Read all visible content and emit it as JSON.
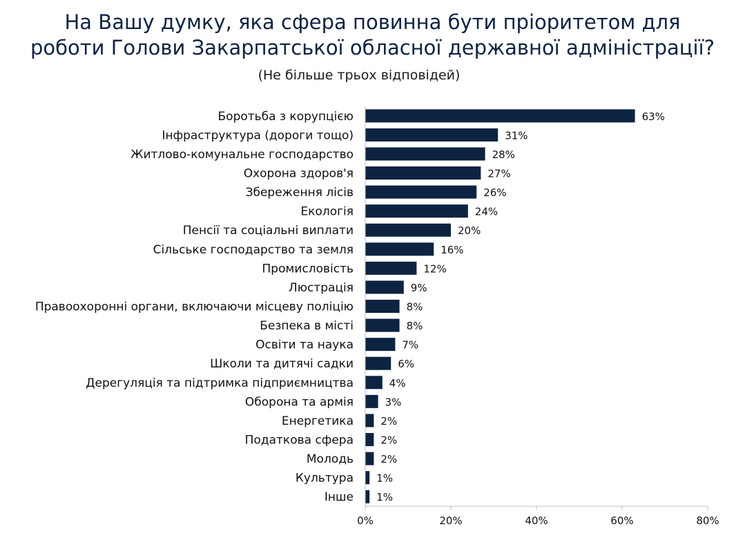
{
  "page": {
    "title_line1": "На Вашу думку, яка сфера повинна бути пріоритетом для",
    "title_line2": "роботи Голови Закарпатської обласної державної адміністрації?",
    "subtitle": "(Не більше трьох відповідей)"
  },
  "chart_data": {
    "type": "bar",
    "orientation": "horizontal",
    "title": "На Вашу думку, яка сфера повинна бути пріоритетом для роботи Голови Закарпатської обласної державної адміністрації?",
    "subtitle": "(Не більше трьох відповідей)",
    "categories": [
      "Боротьба з корупцією",
      "Інфраструктура (дороги тощо)",
      "Житлово-комунальне господарство",
      "Охорона здоров'я",
      "Збереження лісів",
      "Екологія",
      "Пенсії та соціальні виплати",
      "Сільське господарство та земля",
      "Промисловість",
      "Люстрація",
      "Правоохоронні органи, включаючи місцеву поліцію",
      "Безпека в місті",
      "Освіти та наука",
      "Школи та дитячі садки",
      "Дерегуляція та підтримка підприємництва",
      "Оборона та армія",
      "Енергетика",
      "Податкова сфера",
      "Молодь",
      "Культура",
      "Інше"
    ],
    "values": [
      63,
      31,
      28,
      27,
      26,
      24,
      20,
      16,
      12,
      9,
      8,
      8,
      7,
      6,
      4,
      3,
      2,
      2,
      2,
      1,
      1
    ],
    "value_labels": [
      "63%",
      "31%",
      "28%",
      "27%",
      "26%",
      "24%",
      "20%",
      "16%",
      "12%",
      "9%",
      "8%",
      "8%",
      "7%",
      "6%",
      "4%",
      "3%",
      "2%",
      "2%",
      "2%",
      "1%",
      "1%"
    ],
    "x_ticks": [
      "0%",
      "20%",
      "40%",
      "60%",
      "80%"
    ],
    "xlim": [
      0,
      80
    ],
    "grid": false,
    "legend": "none",
    "bar_color": "#0d2342"
  }
}
